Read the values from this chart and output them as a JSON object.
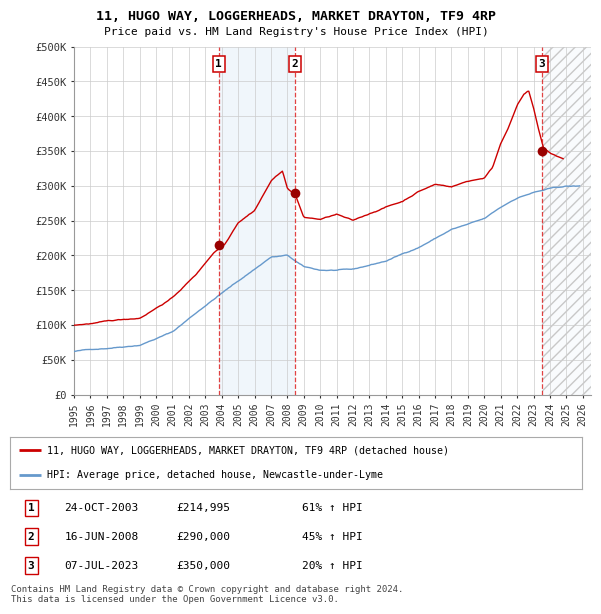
{
  "title1": "11, HUGO WAY, LOGGERHEADS, MARKET DRAYTON, TF9 4RP",
  "title2": "Price paid vs. HM Land Registry's House Price Index (HPI)",
  "ylim": [
    0,
    500000
  ],
  "xlim_start": 1995.0,
  "xlim_end": 2026.5,
  "yticks": [
    0,
    50000,
    100000,
    150000,
    200000,
    250000,
    300000,
    350000,
    400000,
    450000,
    500000
  ],
  "ytick_labels": [
    "£0",
    "£50K",
    "£100K",
    "£150K",
    "£200K",
    "£250K",
    "£300K",
    "£350K",
    "£400K",
    "£450K",
    "£500K"
  ],
  "xticks": [
    1995,
    1996,
    1997,
    1998,
    1999,
    2000,
    2001,
    2002,
    2003,
    2004,
    2005,
    2006,
    2007,
    2008,
    2009,
    2010,
    2011,
    2012,
    2013,
    2014,
    2015,
    2016,
    2017,
    2018,
    2019,
    2020,
    2021,
    2022,
    2023,
    2024,
    2025,
    2026
  ],
  "sale_dates": [
    2003.82,
    2008.46,
    2023.51
  ],
  "sale_prices": [
    214995,
    290000,
    350000
  ],
  "sale_labels": [
    "1",
    "2",
    "3"
  ],
  "hpi_color": "#6699cc",
  "price_color": "#cc0000",
  "dot_color": "#990000",
  "background_color": "#ffffff",
  "grid_color": "#cccccc",
  "shade_color_between": "#d0e4f5",
  "legend_line1": "11, HUGO WAY, LOGGERHEADS, MARKET DRAYTON, TF9 4RP (detached house)",
  "legend_line2": "HPI: Average price, detached house, Newcastle-under-Lyme",
  "table_rows": [
    [
      "1",
      "24-OCT-2003",
      "£214,995",
      "61% ↑ HPI"
    ],
    [
      "2",
      "16-JUN-2008",
      "£290,000",
      "45% ↑ HPI"
    ],
    [
      "3",
      "07-JUL-2023",
      "£350,000",
      "20% ↑ HPI"
    ]
  ],
  "footer": "Contains HM Land Registry data © Crown copyright and database right 2024.\nThis data is licensed under the Open Government Licence v3.0."
}
